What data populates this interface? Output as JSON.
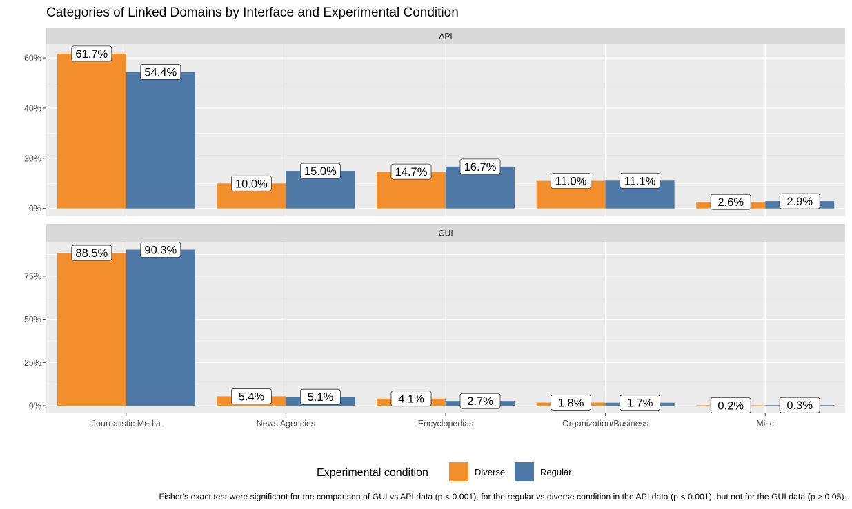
{
  "chart_data": {
    "type": "bar",
    "title": "Categories of Linked Domains by Interface and Experimental Condition",
    "categories": [
      "Journalistic Media",
      "News Agencies",
      "Encyclopedias",
      "Organization/Business",
      "Misc"
    ],
    "legend": {
      "title": "Experimental condition",
      "position": "bottom",
      "entries": [
        {
          "name": "Diverse",
          "color": "#F28E2B"
        },
        {
          "name": "Regular",
          "color": "#4E79A7"
        }
      ]
    },
    "grid": true,
    "facets": [
      {
        "name": "API",
        "ylim": [
          -3.1,
          65.5
        ],
        "yticks": [
          0,
          20,
          40,
          60
        ],
        "ytick_labels": [
          "0%",
          "20%",
          "40%",
          "60%"
        ],
        "series": [
          {
            "name": "Diverse",
            "values": [
              61.7,
              10.0,
              14.7,
              11.0,
              2.6
            ],
            "labels": [
              "61.7%",
              "10.0%",
              "14.7%",
              "11.0%",
              "2.6%"
            ]
          },
          {
            "name": "Regular",
            "values": [
              54.4,
              15.0,
              16.7,
              11.1,
              2.9
            ],
            "labels": [
              "54.4%",
              "15.0%",
              "16.7%",
              "11.1%",
              "2.9%"
            ]
          }
        ]
      },
      {
        "name": "GUI",
        "ylim": [
          -4.4,
          94.9
        ],
        "yticks": [
          0,
          25,
          50,
          75
        ],
        "ytick_labels": [
          "0%",
          "25%",
          "50%",
          "75%"
        ],
        "series": [
          {
            "name": "Diverse",
            "values": [
              88.5,
              5.4,
              4.1,
              1.8,
              0.2
            ],
            "labels": [
              "88.5%",
              "5.4%",
              "4.1%",
              "1.8%",
              "0.2%"
            ]
          },
          {
            "name": "Regular",
            "values": [
              90.3,
              5.1,
              2.7,
              1.7,
              0.3
            ],
            "labels": [
              "90.3%",
              "5.1%",
              "2.7%",
              "1.7%",
              "0.3%"
            ]
          }
        ]
      }
    ],
    "caption": "Fisher's exact test were significant for the comparison of GUI vs API data (p < 0.001), for the regular vs diverse condition in the API data (p < 0.001), but not for the GUI data (p > 0.05)."
  }
}
